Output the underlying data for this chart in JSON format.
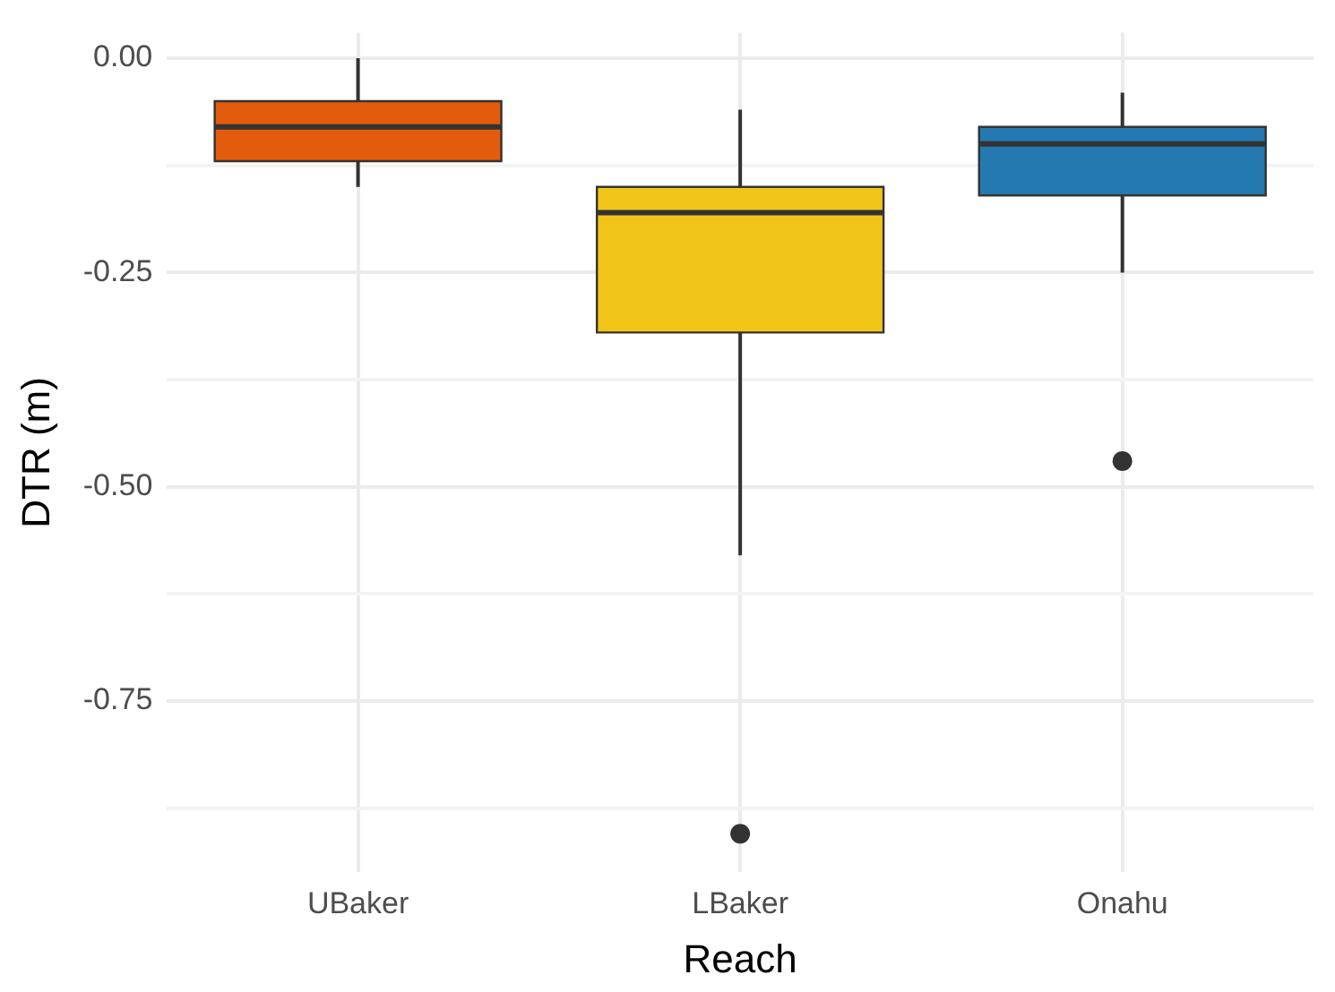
{
  "chart_data": {
    "type": "box",
    "xlabel": "Reach",
    "ylabel": "DTR (m)",
    "categories": [
      "UBaker",
      "LBaker",
      "Onahu"
    ],
    "colors": [
      "#e35b0c",
      "#f1c518",
      "#2479b0"
    ],
    "boxes": [
      {
        "low": -0.15,
        "q1": -0.12,
        "median": -0.08,
        "q3": -0.05,
        "high": 0.0
      },
      {
        "low": -0.58,
        "q1": -0.32,
        "median": -0.18,
        "q3": -0.15,
        "high": -0.06,
        "outliers": [
          -0.905
        ]
      },
      {
        "low": -0.25,
        "q1": -0.16,
        "median": -0.1,
        "q3": -0.08,
        "high": -0.04,
        "outliers": [
          -0.47
        ]
      }
    ],
    "ylim": [
      -0.95,
      0.03
    ],
    "yticks": [
      {
        "value": -0.875,
        "label": null
      },
      {
        "value": -0.75,
        "label": "-0.75"
      },
      {
        "value": -0.625,
        "label": null
      },
      {
        "value": -0.5,
        "label": "-0.50"
      },
      {
        "value": -0.375,
        "label": null
      },
      {
        "value": -0.25,
        "label": "-0.25"
      },
      {
        "value": -0.125,
        "label": null
      },
      {
        "value": 0,
        "label": "0.00"
      }
    ],
    "grid": true,
    "legend": false
  }
}
